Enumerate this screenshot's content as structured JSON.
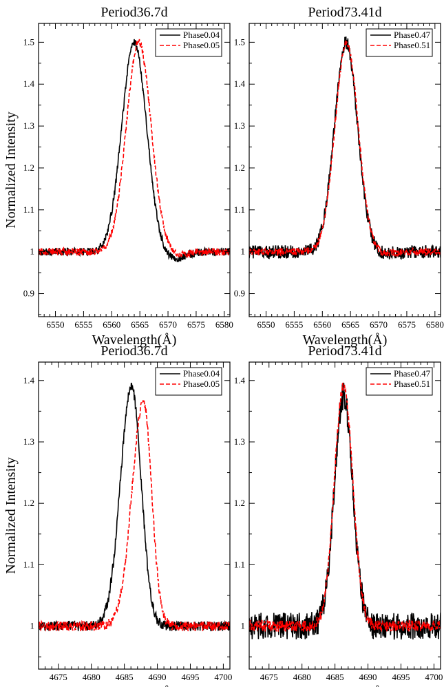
{
  "chart_data": [
    {
      "type": "line",
      "title": "Period36.7d",
      "xlabel": "Wavelength(Å)",
      "ylabel": "Normalized Intensity",
      "xlim": [
        6547,
        6581
      ],
      "ylim": [
        0.845,
        1.545
      ],
      "xticks": [
        6550,
        6555,
        6560,
        6565,
        6570,
        6575,
        6580
      ],
      "yticks": [
        0.9,
        1,
        1.1,
        1.2,
        1.3,
        1.4,
        1.5
      ],
      "ytick_labels": [
        "0.9",
        "1",
        "1.1",
        "1.2",
        "1.3",
        "1.4",
        "1.5"
      ],
      "legend_position": "top-right",
      "series": [
        {
          "name": "Phase0.04",
          "color": "#000000",
          "style": "solid",
          "center": 6564.0,
          "peak": 1.5,
          "sigma_left": 2.2,
          "sigma_right": 2.2,
          "dip": -0.018,
          "noise": 0.009
        },
        {
          "name": "Phase0.05",
          "color": "#ff0000",
          "style": "dashed",
          "center": 6564.8,
          "peak": 1.5,
          "sigma_left": 2.2,
          "sigma_right": 2.2,
          "dip": -0.008,
          "noise": 0.009
        }
      ]
    },
    {
      "type": "line",
      "title": "Period73.41d",
      "xlabel": "Wavelength(Å)",
      "ylabel": "",
      "xlim": [
        6547,
        6581
      ],
      "ylim": [
        0.845,
        1.545
      ],
      "xticks": [
        6550,
        6555,
        6560,
        6565,
        6570,
        6575,
        6580
      ],
      "yticks": [
        0.9,
        1,
        1.1,
        1.2,
        1.3,
        1.4,
        1.5
      ],
      "ytick_labels": [
        "0.9",
        "1",
        "1.1",
        "1.2",
        "1.3",
        "1.4",
        "1.5"
      ],
      "legend_position": "top-right",
      "series": [
        {
          "name": "Phase0.47",
          "color": "#000000",
          "style": "solid",
          "center": 6564.2,
          "peak": 1.5,
          "sigma_left": 2.05,
          "sigma_right": 2.05,
          "dip": -0.005,
          "noise": 0.016
        },
        {
          "name": "Phase0.51",
          "color": "#ff0000",
          "style": "dashed",
          "center": 6564.3,
          "peak": 1.5,
          "sigma_left": 2.05,
          "sigma_right": 2.05,
          "dip": -0.005,
          "noise": 0.009
        }
      ]
    },
    {
      "type": "line",
      "title": "Period36.7d",
      "xlabel": "Wavelength(Å)",
      "ylabel": "Normalized Intensity",
      "xlim": [
        4672,
        4701
      ],
      "ylim": [
        0.93,
        1.43
      ],
      "xticks": [
        4675,
        4680,
        4685,
        4690,
        4695,
        4700
      ],
      "yticks": [
        1,
        1.1,
        1.2,
        1.3,
        1.4
      ],
      "ytick_labels": [
        "1",
        "1.1",
        "1.2",
        "1.3",
        "1.4"
      ],
      "legend_position": "top-right",
      "series": [
        {
          "name": "Phase0.04",
          "color": "#000000",
          "style": "solid",
          "center": 4686.1,
          "peak": 1.39,
          "sigma_left": 1.7,
          "sigma_right": 1.45,
          "dip": 0,
          "noise": 0.008
        },
        {
          "name": "Phase0.05",
          "color": "#ff0000",
          "style": "dashed",
          "center": 4687.9,
          "peak": 1.365,
          "sigma_left": 1.75,
          "sigma_right": 1.25,
          "dip": 0,
          "noise": 0.008
        }
      ]
    },
    {
      "type": "line",
      "title": "Period73.41d",
      "xlabel": "Wavelength(Å)",
      "ylabel": "",
      "xlim": [
        4672,
        4701
      ],
      "ylim": [
        0.93,
        1.43
      ],
      "xticks": [
        4675,
        4680,
        4685,
        4690,
        4695,
        4700
      ],
      "yticks": [
        1,
        1.1,
        1.2,
        1.3,
        1.4
      ],
      "ytick_labels": [
        "1",
        "1.1",
        "1.2",
        "1.3",
        "1.4"
      ],
      "legend_position": "top-right",
      "series": [
        {
          "name": "Phase0.47",
          "color": "#000000",
          "style": "solid",
          "center": 4686.3,
          "peak": 1.375,
          "sigma_left": 1.4,
          "sigma_right": 1.4,
          "dip": 0,
          "noise": 0.022
        },
        {
          "name": "Phase0.51",
          "color": "#ff0000",
          "style": "dashed",
          "center": 4686.3,
          "peak": 1.39,
          "sigma_left": 1.4,
          "sigma_right": 1.4,
          "dip": 0,
          "noise": 0.009
        }
      ]
    }
  ]
}
